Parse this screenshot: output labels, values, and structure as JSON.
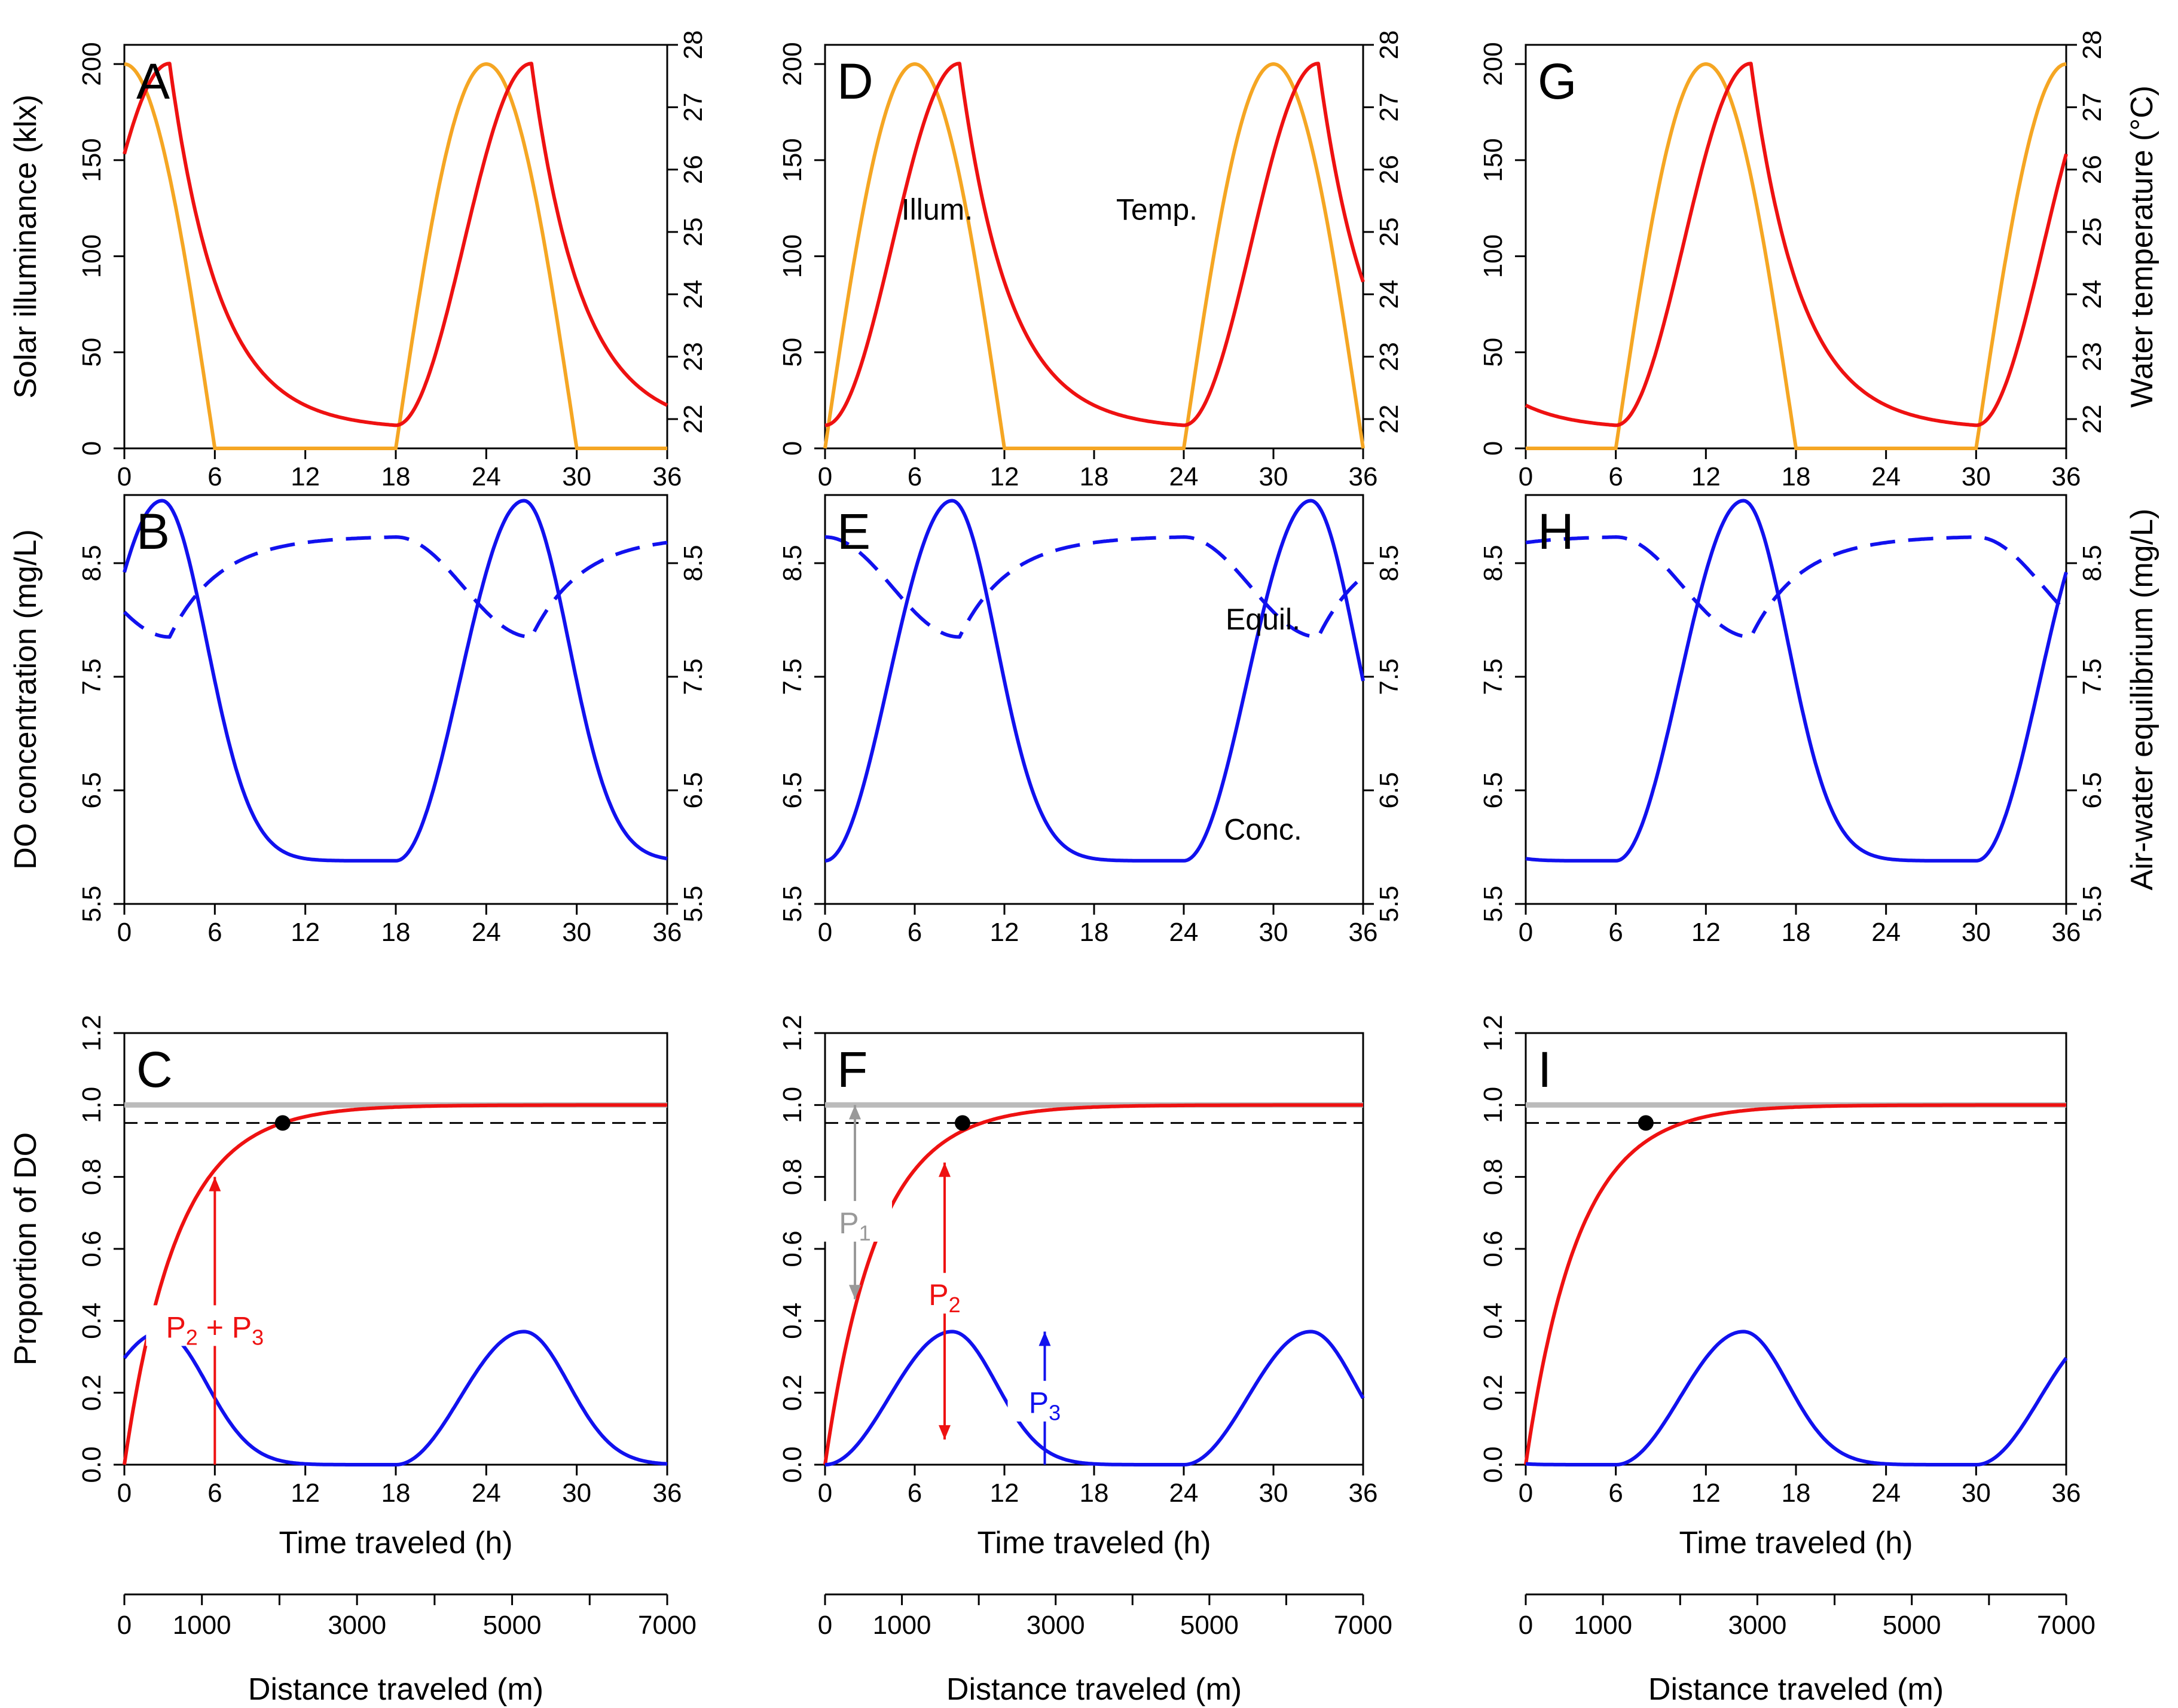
{
  "chart_data": {
    "type": "line",
    "layout": "3x3 panel grid (3 columns: start time offset 12h, 6h, 0h), shared distance axis under each column",
    "colors": {
      "illum": "#F5A623",
      "temp": "#EE1111",
      "conc": "#1111EE",
      "equil": "#1111EE",
      "reference": "#BBBBBB",
      "threshold": "#000000",
      "p1_arrow": "#999999",
      "p2_arrow": "#EE1111",
      "p3_arrow": "#1111EE"
    },
    "axes": {
      "x": {
        "label": "Time traveled (h)",
        "range": [
          0,
          36
        ],
        "ticks": [
          "0",
          "6",
          "12",
          "18",
          "24",
          "30",
          "36"
        ]
      },
      "distance": {
        "label": "Distance traveled (m)",
        "range": [
          0,
          7000
        ],
        "ticks": [
          "0",
          "1000",
          "3000",
          "5000",
          "7000"
        ],
        "minor_ticks": [
          2000,
          4000,
          6000
        ]
      },
      "row_light": {
        "left_label": "Solar illuminance (klx)",
        "left_range": [
          0,
          210
        ],
        "left_ticks": [
          "0",
          "50",
          "100",
          "150",
          "200"
        ],
        "right_label": "Water temperature (°C)",
        "right_range": [
          21.53,
          28
        ],
        "right_ticks": [
          "22",
          "23",
          "24",
          "25",
          "26",
          "27",
          "28"
        ]
      },
      "row_do": {
        "left_label": "DO concentration (mg/L)",
        "left_range": [
          5.5,
          9.1
        ],
        "left_ticks": [
          "5.5",
          "6.5",
          "7.5",
          "8.5"
        ],
        "right_label": "Air-water equilibrium (mg/L)",
        "right_range": [
          5.5,
          9.1
        ],
        "right_ticks": [
          "5.5",
          "6.5",
          "7.5",
          "8.5"
        ]
      },
      "row_prop": {
        "left_label": "Proportion of DO",
        "left_range": [
          0,
          1.2
        ],
        "left_ticks": [
          "0.0",
          "0.2",
          "0.4",
          "0.6",
          "0.8",
          "1.0",
          "1.2"
        ]
      }
    },
    "columns": [
      {
        "offset_h": 12,
        "letters": [
          "A",
          "B",
          "C"
        ],
        "dot": {
          "x": 10.5,
          "y": 0.95
        },
        "arrows": [
          {
            "name": "p2p3",
            "color": "p2_arrow",
            "x": 6,
            "y_from": 0.0,
            "y_to": 0.8,
            "heads": "up"
          }
        ],
        "arrow_labels": [
          {
            "name": "p2p3",
            "parts": [
              "P",
              "2",
              " + P",
              "3"
            ],
            "color": "p2_arrow",
            "x": 6.0,
            "y": 0.37
          }
        ]
      },
      {
        "offset_h": 6,
        "letters": [
          "D",
          "E",
          "F"
        ],
        "dot": {
          "x": 9.2,
          "y": 0.95
        },
        "arrows": [
          {
            "name": "p1",
            "color": "p1_arrow",
            "x": 2.0,
            "y_from": 0.46,
            "y_to": 1.0,
            "heads": "both"
          },
          {
            "name": "p2",
            "color": "p2_arrow",
            "x": 8.0,
            "y_from": 0.07,
            "y_to": 0.84,
            "heads": "both"
          },
          {
            "name": "p3",
            "color": "p3_arrow",
            "x": 14.7,
            "y_from": 0.0,
            "y_to": 0.37,
            "heads": "up"
          }
        ],
        "arrow_labels": [
          {
            "name": "p1",
            "parts": [
              "P",
              "1"
            ],
            "color": "p1_arrow",
            "x": 2.0,
            "y": 0.66
          },
          {
            "name": "p2",
            "parts": [
              "P",
              "2"
            ],
            "color": "p2_arrow",
            "x": 8.0,
            "y": 0.46
          },
          {
            "name": "p3",
            "parts": [
              "P",
              "3"
            ],
            "color": "p3_arrow",
            "x": 14.7,
            "y": 0.16
          }
        ],
        "text_labels": [
          {
            "row": 0,
            "key": "illum_label",
            "x": 7.5,
            "y": 124,
            "color": "#000000"
          },
          {
            "row": 0,
            "key": "temp_label",
            "x": 22.2,
            "y": 124,
            "color": "#000000"
          },
          {
            "row": 1,
            "key": "equil_label",
            "x": 29.3,
            "y": 8.0,
            "color": "#000000"
          },
          {
            "row": 1,
            "key": "conc_label",
            "x": 29.3,
            "y": 6.15,
            "color": "#000000"
          }
        ]
      },
      {
        "offset_h": 0,
        "letters": [
          "G",
          "H",
          "I"
        ],
        "dot": {
          "x": 8.0,
          "y": 0.95
        },
        "arrows": [],
        "arrow_labels": []
      }
    ],
    "labels": {
      "illum_label": "Illum.",
      "temp_label": "Temp.",
      "equil_label": "Equil.",
      "conc_label": "Conc."
    },
    "series": [
      {
        "name": "Solar illuminance",
        "row": 0,
        "axis": "left",
        "color": "illum",
        "style": "solid",
        "model": "illum",
        "peak_klx": 200,
        "daylight_hours": "06-18"
      },
      {
        "name": "Water temperature",
        "row": 0,
        "axis": "right",
        "color": "temp",
        "style": "solid",
        "model": "temp",
        "min_c": 21.9,
        "max_c": 27.7,
        "min_at_h": 6,
        "max_at_h": 15
      },
      {
        "name": "DO concentration",
        "row": 1,
        "axis": "left",
        "color": "conc",
        "style": "solid",
        "model": "conc",
        "min": 5.88,
        "max": 9.05
      },
      {
        "name": "Air-water equilibrium",
        "row": 1,
        "axis": "right",
        "color": "equil",
        "style": "dashed",
        "model": "equil",
        "min": 7.85,
        "max": 8.73
      },
      {
        "name": "Reference 1.0",
        "row": 2,
        "axis": "left",
        "color": "reference",
        "style": "solid",
        "model": "const",
        "value": 1.0
      },
      {
        "name": "95% threshold",
        "row": 2,
        "axis": "left",
        "color": "threshold",
        "style": "dashed",
        "model": "const",
        "value": 0.95
      },
      {
        "name": "P2+P3 cumulative",
        "row": 2,
        "axis": "left",
        "color": "temp",
        "style": "solid",
        "model": "cumulative"
      },
      {
        "name": "P3 proportion",
        "row": 2,
        "axis": "left",
        "color": "conc",
        "style": "solid",
        "model": "p3",
        "max": 0.37
      }
    ]
  }
}
